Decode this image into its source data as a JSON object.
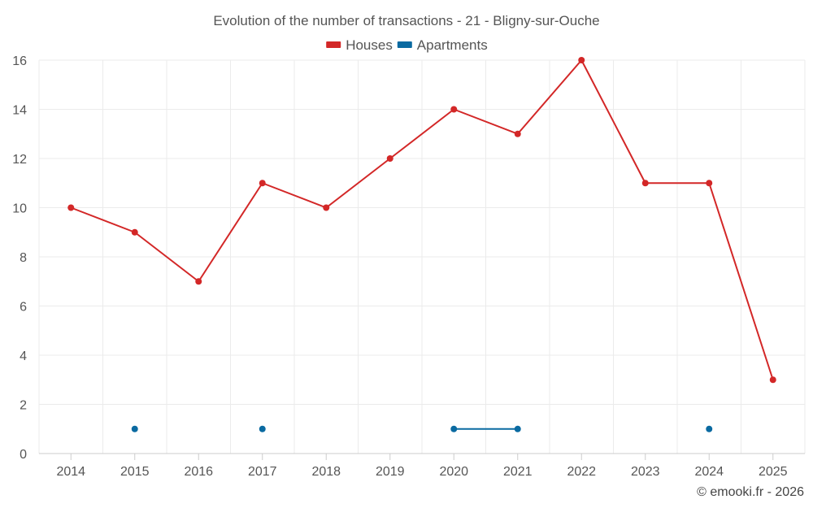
{
  "chart_data": {
    "type": "line",
    "title": "Evolution of the number of transactions - 21 - Bligny-sur-Ouche",
    "categories": [
      "2014",
      "2015",
      "2016",
      "2017",
      "2018",
      "2019",
      "2020",
      "2021",
      "2022",
      "2023",
      "2024",
      "2025"
    ],
    "ylim": [
      0,
      16
    ],
    "yticks": [
      0,
      2,
      4,
      6,
      8,
      10,
      12,
      14,
      16
    ],
    "grid": true,
    "legend_position": "top-center",
    "series": [
      {
        "name": "Houses",
        "color": "#d32727",
        "values": [
          10,
          9,
          7,
          11,
          10,
          12,
          14,
          13,
          16,
          11,
          11,
          3
        ]
      },
      {
        "name": "Apartments",
        "color": "#0a6aa1",
        "values": [
          null,
          1,
          null,
          1,
          null,
          null,
          1,
          1,
          null,
          null,
          1,
          null
        ]
      }
    ]
  },
  "credit": "© emooki.fr - 2026"
}
